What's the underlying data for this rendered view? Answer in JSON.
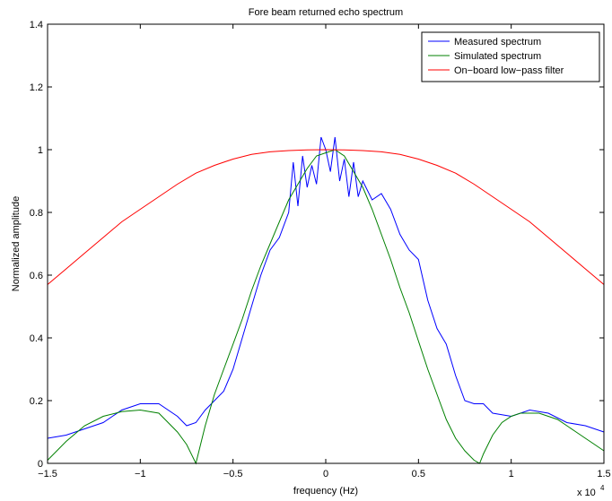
{
  "chart_data": {
    "type": "line",
    "title": "Fore beam returned echo spectrum",
    "xlabel": "frequency (Hz)",
    "ylabel": "Normalized amplitude",
    "x_multiplier_label": "x 10",
    "x_multiplier_exponent": "4",
    "xlim": [
      -15000,
      15000
    ],
    "ylim": [
      0,
      1.4
    ],
    "x_ticks": [
      -15000,
      -10000,
      -5000,
      0,
      5000,
      10000,
      15000
    ],
    "x_tick_labels": [
      "−1.5",
      "−1",
      "−0.5",
      "0",
      "0.5",
      "1",
      "1.5"
    ],
    "y_ticks": [
      0,
      0.2,
      0.4,
      0.6,
      0.8,
      1,
      1.2,
      1.4
    ],
    "y_tick_labels": [
      "0",
      "0.2",
      "0.4",
      "0.6",
      "0.8",
      "1",
      "1.2",
      "1.4"
    ],
    "grid": false,
    "legend_position": "top-right",
    "series": [
      {
        "name": "Measured spectrum",
        "color": "#0000ff",
        "x": [
          -15000,
          -14000,
          -13000,
          -12000,
          -11000,
          -10000,
          -9000,
          -8000,
          -7500,
          -7000,
          -6500,
          -6000,
          -5500,
          -5000,
          -4500,
          -4000,
          -3500,
          -3000,
          -2500,
          -2000,
          -1750,
          -1500,
          -1250,
          -1000,
          -750,
          -500,
          -250,
          0,
          250,
          500,
          750,
          1000,
          1250,
          1500,
          1750,
          2000,
          2500,
          3000,
          3500,
          4000,
          4500,
          5000,
          5500,
          6000,
          6500,
          7000,
          7500,
          8000,
          8500,
          9000,
          10000,
          11000,
          12000,
          13000,
          14000,
          15000
        ],
        "y": [
          0.08,
          0.09,
          0.11,
          0.13,
          0.17,
          0.19,
          0.19,
          0.15,
          0.12,
          0.13,
          0.17,
          0.2,
          0.23,
          0.3,
          0.4,
          0.5,
          0.6,
          0.68,
          0.72,
          0.8,
          0.96,
          0.82,
          0.98,
          0.88,
          0.95,
          0.89,
          1.04,
          1.0,
          0.93,
          1.04,
          0.9,
          0.97,
          0.85,
          0.96,
          0.85,
          0.9,
          0.84,
          0.86,
          0.81,
          0.73,
          0.68,
          0.65,
          0.52,
          0.43,
          0.38,
          0.28,
          0.2,
          0.19,
          0.19,
          0.16,
          0.15,
          0.17,
          0.16,
          0.13,
          0.12,
          0.1
        ]
      },
      {
        "name": "Simulated spectrum",
        "color": "#008000",
        "x": [
          -15000,
          -14000,
          -13000,
          -12000,
          -11000,
          -10000,
          -9000,
          -8000,
          -7500,
          -7000,
          -6500,
          -6000,
          -5500,
          -5000,
          -4500,
          -4000,
          -3500,
          -3000,
          -2500,
          -2000,
          -1500,
          -1000,
          -500,
          0,
          500,
          1000,
          1500,
          2000,
          2500,
          3000,
          3500,
          4000,
          4500,
          5000,
          5500,
          6000,
          6500,
          7000,
          7500,
          8000,
          8300,
          8500,
          9000,
          9500,
          10000,
          10500,
          11000,
          11500,
          12000,
          12500,
          13000,
          13500,
          14000,
          14500,
          15000
        ],
        "y": [
          0.01,
          0.07,
          0.12,
          0.15,
          0.165,
          0.17,
          0.16,
          0.1,
          0.06,
          0.0,
          0.12,
          0.22,
          0.3,
          0.38,
          0.46,
          0.55,
          0.63,
          0.7,
          0.77,
          0.84,
          0.89,
          0.94,
          0.98,
          0.99,
          1.0,
          0.98,
          0.93,
          0.88,
          0.81,
          0.73,
          0.65,
          0.56,
          0.48,
          0.39,
          0.3,
          0.22,
          0.14,
          0.08,
          0.04,
          0.01,
          0.0,
          0.03,
          0.09,
          0.13,
          0.15,
          0.16,
          0.16,
          0.16,
          0.15,
          0.14,
          0.12,
          0.1,
          0.08,
          0.06,
          0.04
        ]
      },
      {
        "name": "On−board low−pass filter",
        "color": "#ff0000",
        "x": [
          -15000,
          -14000,
          -13000,
          -12000,
          -11000,
          -10000,
          -9000,
          -8000,
          -7000,
          -6000,
          -5000,
          -4000,
          -3000,
          -2000,
          -1000,
          0,
          1000,
          2000,
          3000,
          4000,
          5000,
          6000,
          7000,
          8000,
          9000,
          10000,
          11000,
          12000,
          13000,
          14000,
          15000
        ],
        "y": [
          0.57,
          0.62,
          0.67,
          0.72,
          0.77,
          0.81,
          0.85,
          0.89,
          0.925,
          0.95,
          0.97,
          0.985,
          0.993,
          0.997,
          0.999,
          1.0,
          0.999,
          0.997,
          0.993,
          0.985,
          0.97,
          0.95,
          0.925,
          0.89,
          0.85,
          0.81,
          0.77,
          0.72,
          0.67,
          0.62,
          0.57
        ]
      }
    ]
  }
}
